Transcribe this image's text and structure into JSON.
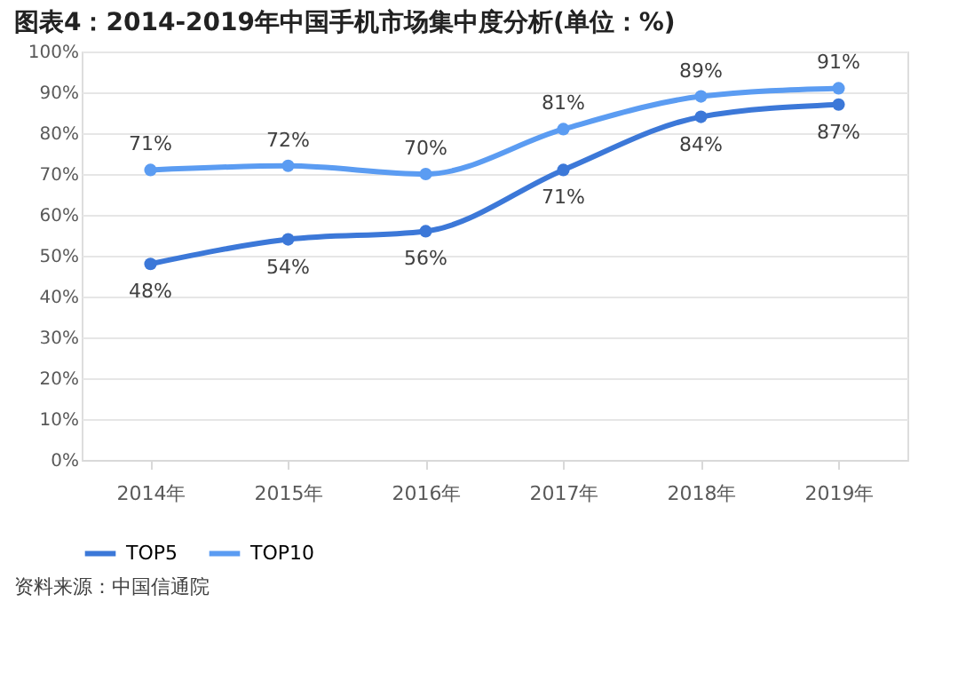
{
  "chart_data": {
    "type": "line",
    "title": "图表4：2014-2019年中国手机市场集中度分析(单位：%)",
    "categories": [
      "2014年",
      "2015年",
      "2016年",
      "2017年",
      "2018年",
      "2019年"
    ],
    "series": [
      {
        "name": "TOP5",
        "color": "#3c78d8",
        "values": [
          48,
          54,
          56,
          71,
          84,
          87
        ],
        "value_labels": [
          "48%",
          "54%",
          "56%",
          "71%",
          "84%",
          "87%"
        ]
      },
      {
        "name": "TOP10",
        "color": "#5b9cf2",
        "values": [
          71,
          72,
          70,
          81,
          89,
          91
        ],
        "value_labels": [
          "71%",
          "72%",
          "70%",
          "81%",
          "89%",
          "91%"
        ]
      }
    ],
    "ylim": [
      0,
      100
    ],
    "yticks": [
      {
        "value": 0,
        "label": "0%"
      },
      {
        "value": 10,
        "label": "10%"
      },
      {
        "value": 20,
        "label": "20%"
      },
      {
        "value": 30,
        "label": "30%"
      },
      {
        "value": 40,
        "label": "40%"
      },
      {
        "value": 50,
        "label": "50%"
      },
      {
        "value": 60,
        "label": "60%"
      },
      {
        "value": 70,
        "label": "70%"
      },
      {
        "value": 80,
        "label": "80%"
      },
      {
        "value": 90,
        "label": "90%"
      },
      {
        "value": 100,
        "label": "100%"
      }
    ],
    "grid": "y",
    "legend": "bottom",
    "marker": "circle",
    "line_style": "solid",
    "annotations": [
      "资料来源：中国信通院"
    ]
  }
}
